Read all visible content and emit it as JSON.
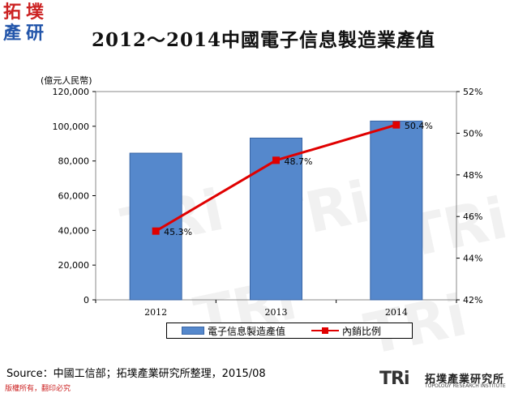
{
  "logo": {
    "chars": [
      "拓",
      "墣",
      "產",
      "研"
    ]
  },
  "watermark": "TRi",
  "unit_label": "(億元人民幣)",
  "chart_data": {
    "type": "bar",
    "title": "2012～2014中國電子信息製造業產值",
    "categories": [
      "2012",
      "2013",
      "2014"
    ],
    "series": [
      {
        "name": "電子信息製造產值",
        "type": "bar",
        "axis": "left",
        "values": [
          84500,
          93200,
          103000
        ],
        "color": "#5588cc"
      },
      {
        "name": "內銷比例",
        "type": "line",
        "axis": "right",
        "values": [
          45.3,
          48.7,
          50.4
        ],
        "labels": [
          "45.3%",
          "48.7%",
          "50.4%"
        ],
        "color": "#e00000"
      }
    ],
    "y_left": {
      "min": 0,
      "max": 120000,
      "step": 20000,
      "tick_labels": [
        "0",
        "20,000",
        "40,000",
        "60,000",
        "80,000",
        "100,000",
        "120,000"
      ]
    },
    "y_right": {
      "min": 42,
      "max": 52,
      "step": 2,
      "tick_labels": [
        "42%",
        "44%",
        "46%",
        "48%",
        "50%",
        "52%"
      ]
    },
    "grid": false,
    "legend_position": "bottom"
  },
  "source": "Source：中國工信部；拓墣產業研究所整理，2015/08",
  "copyright": "版權所有，翻印必究",
  "tri_logo": {
    "mark": "TRi",
    "name": "拓墣產業研究所",
    "sub": "TOPOLOGY RESEARCH INSTITUTE"
  },
  "colors": {
    "accent_red": "#e00000",
    "bar_blue": "#5588cc",
    "logo_red": "#cc2222",
    "logo_blue": "#2255aa"
  }
}
